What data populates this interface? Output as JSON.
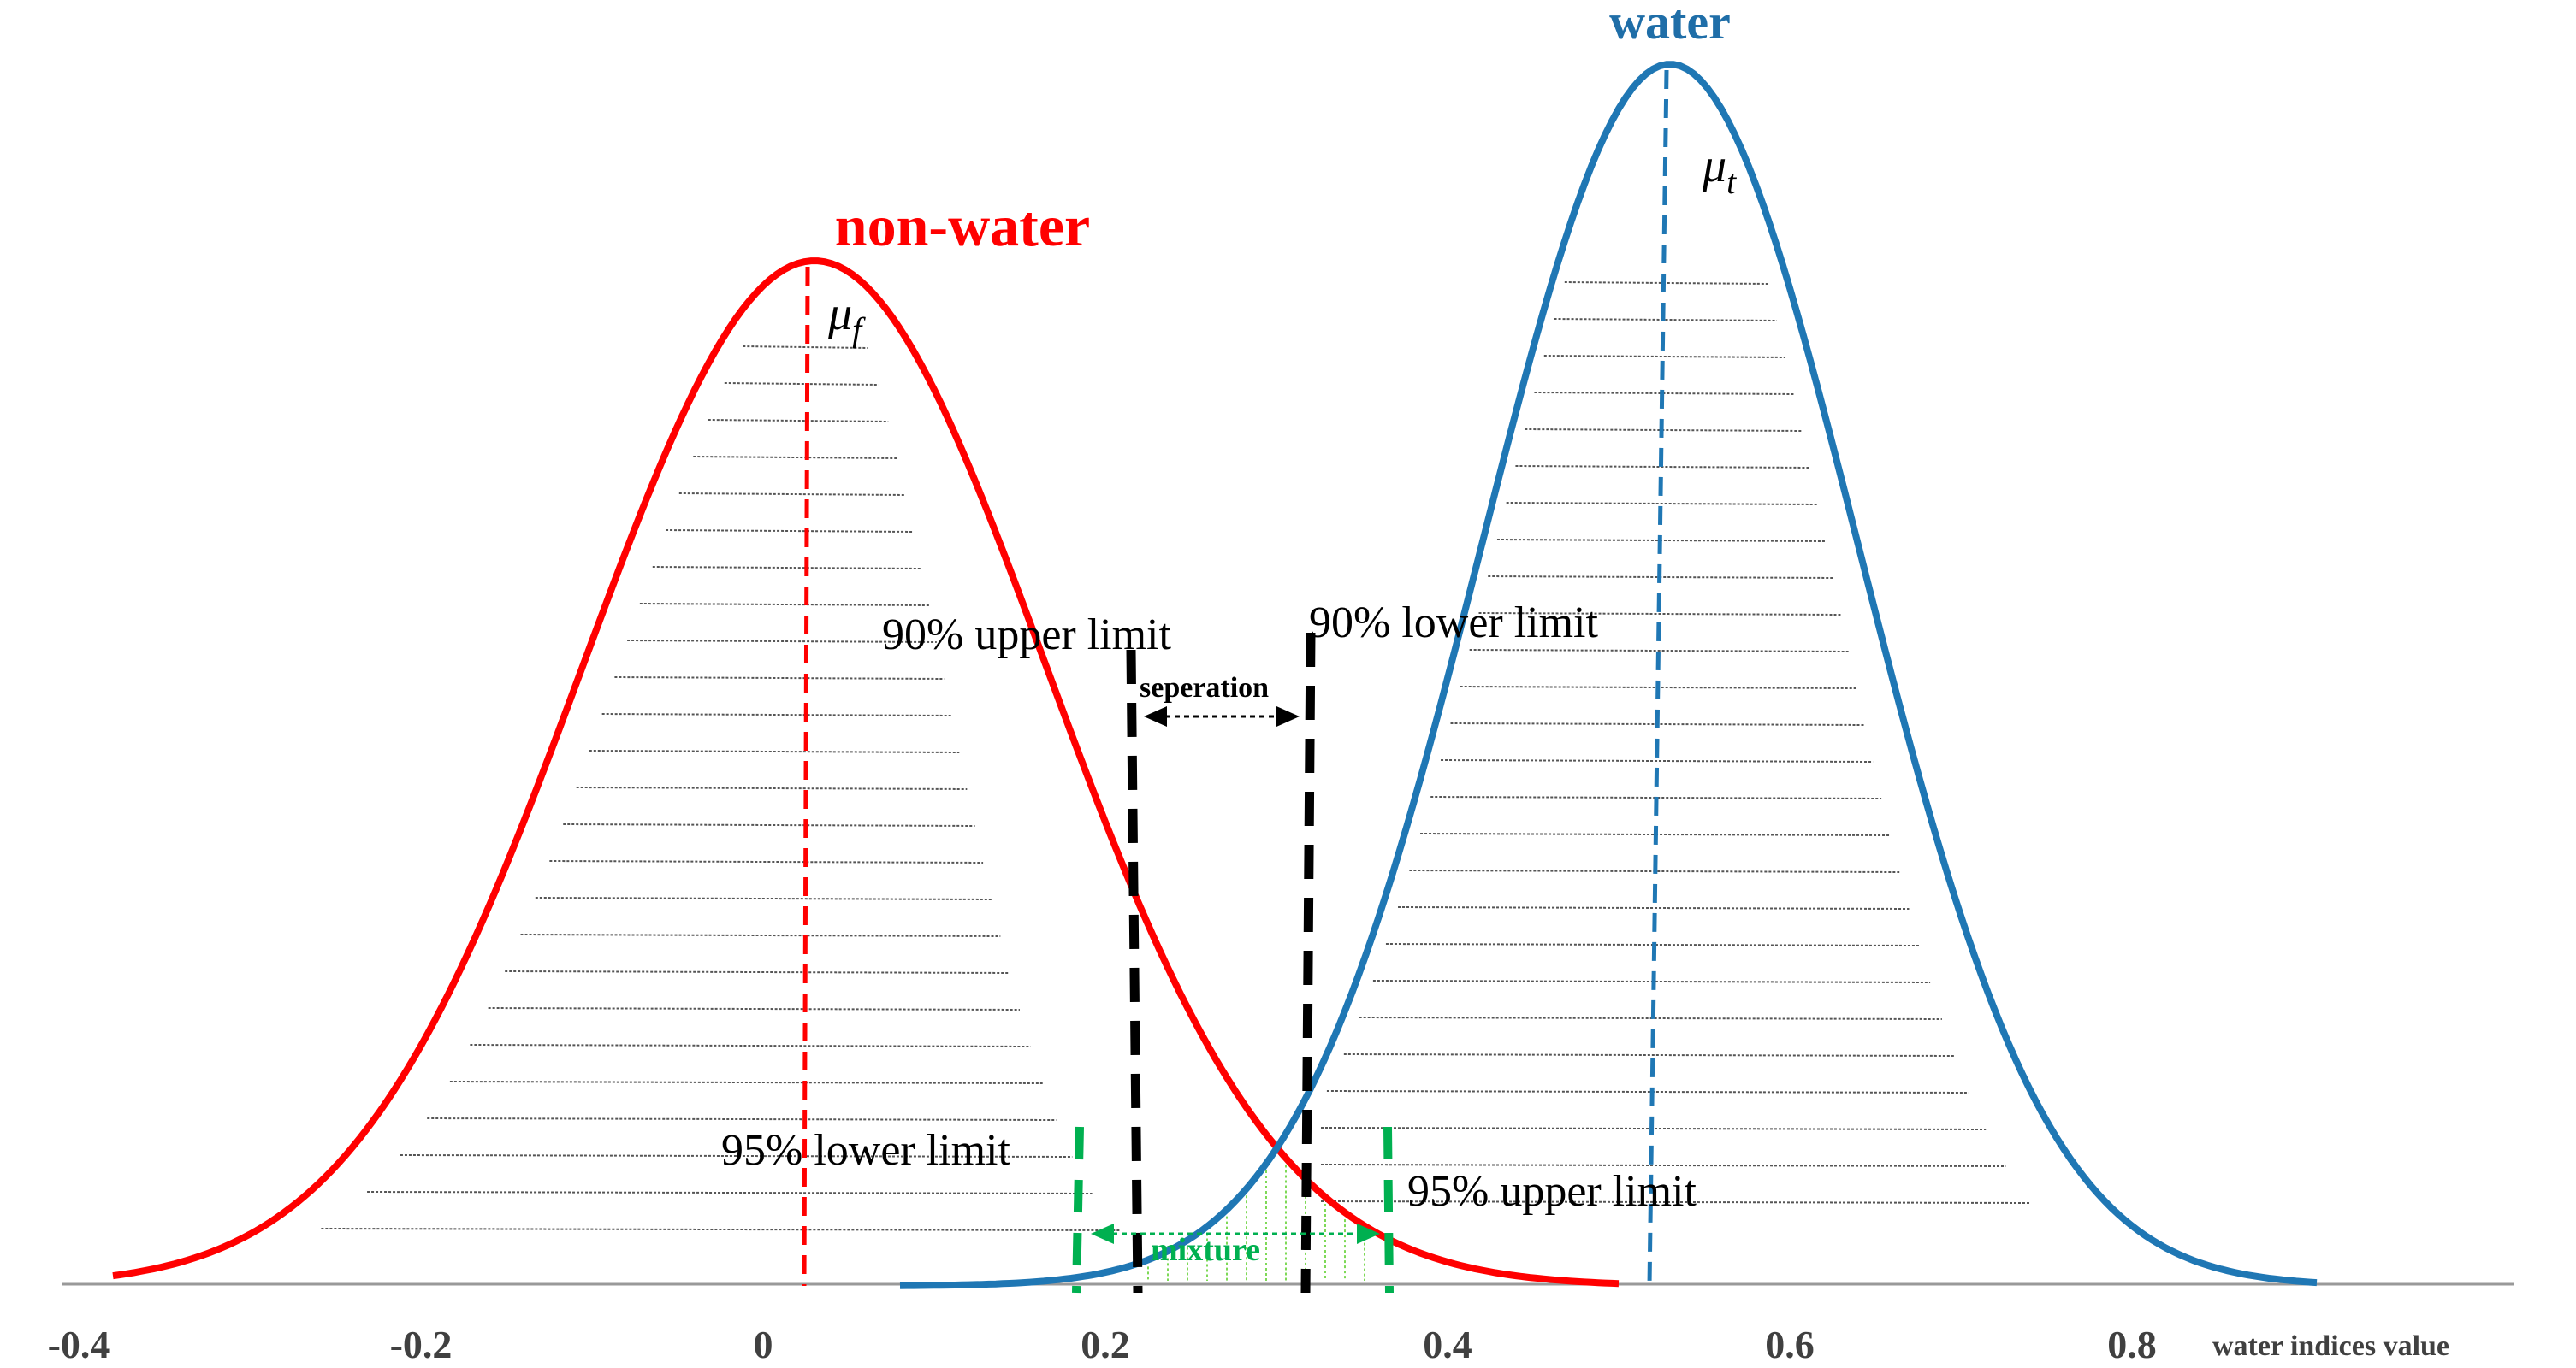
{
  "labels": {
    "non_water": "non-water",
    "water": "water",
    "mu_f": "μ",
    "mu_f_sub": "f",
    "mu_t": "μ",
    "mu_t_sub": "t",
    "upper90": "90% upper limit",
    "lower90": "90% lower limit",
    "separation": "seperation",
    "lower95": "95% lower limit",
    "upper95": "95% upper limit",
    "mixture": "mixture",
    "x_axis_label": "water indices value"
  },
  "x_ticks": [
    "-0.4",
    "-0.2",
    "0",
    "0.2",
    "0.4",
    "0.6",
    "0.8"
  ],
  "colors": {
    "non_water": "#ff0000",
    "water": "#1f77b4",
    "limit_90": "#000000",
    "limit_95": "#00b050",
    "axis": "#999999"
  },
  "chart_data": {
    "type": "line",
    "xlim": [
      -0.4,
      0.9
    ],
    "series": [
      {
        "name": "non-water",
        "mean": 0.03,
        "sd": 0.135,
        "x_range": [
          -0.38,
          0.5
        ]
      },
      {
        "name": "water",
        "mean": 0.53,
        "sd": 0.11,
        "x_range": [
          0.08,
          0.91
        ]
      }
    ],
    "limits": {
      "upper90": 0.215,
      "lower90": 0.32,
      "lower95": 0.185,
      "upper95": 0.365
    }
  }
}
